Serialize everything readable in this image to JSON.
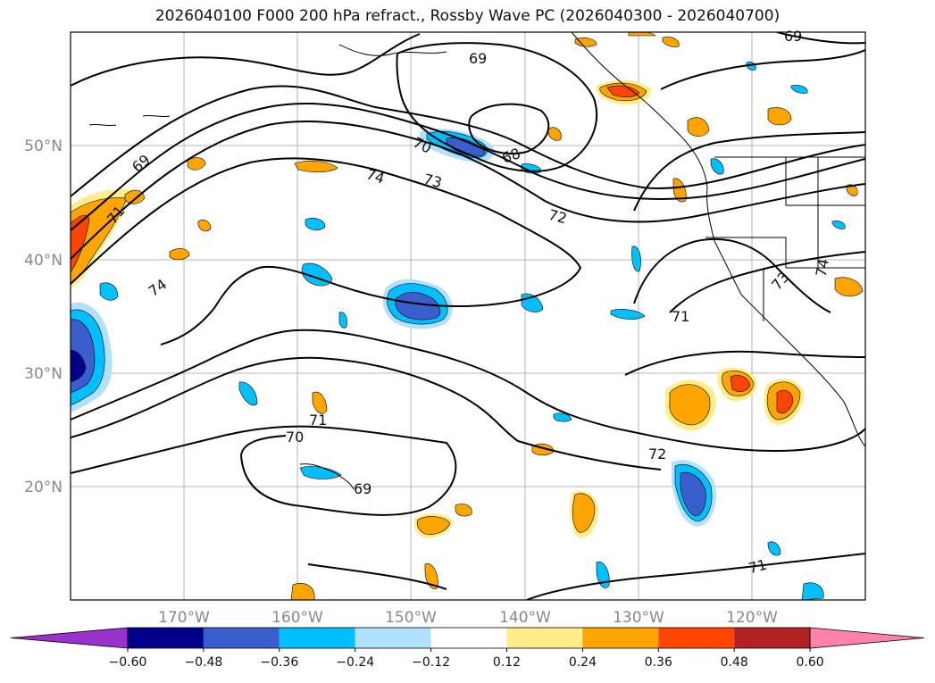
{
  "title": "2026040100 F000 200 hPa refract., Rossby Wave PC (2026040300 - 2026040700)",
  "lat_labels": [
    "20°N",
    "30°N",
    "40°N",
    "50°N"
  ],
  "lon_labels": [
    "170°W",
    "160°W",
    "150°W",
    "140°W",
    "130°W",
    "120°W"
  ],
  "contour_labels": [
    "69",
    "69",
    "71",
    "74",
    "70",
    "74",
    "73",
    "72",
    "68",
    "69",
    "73",
    "74",
    "71",
    "71",
    "70",
    "69",
    "72",
    "71"
  ],
  "colorbar": {
    "ticks": [
      "−0.60",
      "−0.48",
      "−0.36",
      "−0.24",
      "−0.12",
      "0.12",
      "0.24",
      "0.36",
      "0.48",
      "0.60"
    ],
    "colors": [
      "#9932cc",
      "#00008b",
      "#3a5fcd",
      "#00bfff",
      "#b0e2ff",
      "#ffffff",
      "#ffec8b",
      "#ffa500",
      "#ff4500",
      "#b22222",
      "#ff82ab"
    ]
  }
}
